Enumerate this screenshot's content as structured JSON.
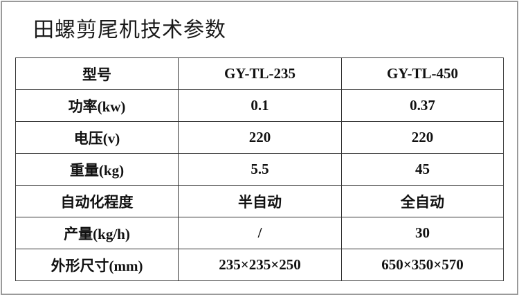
{
  "title": "田螺剪尾机技术参数",
  "table": {
    "headers": [
      "型号",
      "GY-TL-235",
      "GY-TL-450"
    ],
    "rows": [
      [
        "功率(kw)",
        "0.1",
        "0.37"
      ],
      [
        "电压(v)",
        "220",
        "220"
      ],
      [
        "重量(kg)",
        "5.5",
        "45"
      ],
      [
        "自动化程度",
        "半自动",
        "全自动"
      ],
      [
        "产量(kg/h)",
        "/",
        "30"
      ],
      [
        "外形尺寸(mm)",
        "235×235×250",
        "650×350×570"
      ]
    ]
  }
}
